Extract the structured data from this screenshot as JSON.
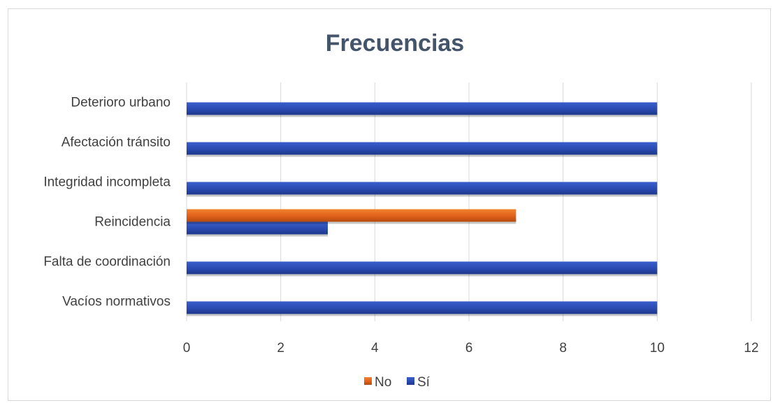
{
  "chart_data": {
    "type": "bar",
    "orientation": "horizontal",
    "title": "Frecuencias",
    "xlabel": "",
    "ylabel": "",
    "xlim": [
      0,
      12
    ],
    "x_ticks": [
      0,
      2,
      4,
      6,
      8,
      10,
      12
    ],
    "grid": true,
    "legend_position": "bottom",
    "categories": [
      "Vacíos normativos",
      "Falta de coordinación",
      "Reincidencia",
      "Integridad incompleta",
      "Afectación tránsito",
      "Deterioro urbano"
    ],
    "series": [
      {
        "name": "Sí",
        "color": "#2e4fb5",
        "values": [
          10,
          10,
          3,
          10,
          10,
          10
        ]
      },
      {
        "name": "No",
        "color": "#e0611a",
        "values": [
          0,
          0,
          7,
          0,
          0,
          0
        ]
      }
    ],
    "legend_order": [
      "No",
      "Sí"
    ]
  }
}
